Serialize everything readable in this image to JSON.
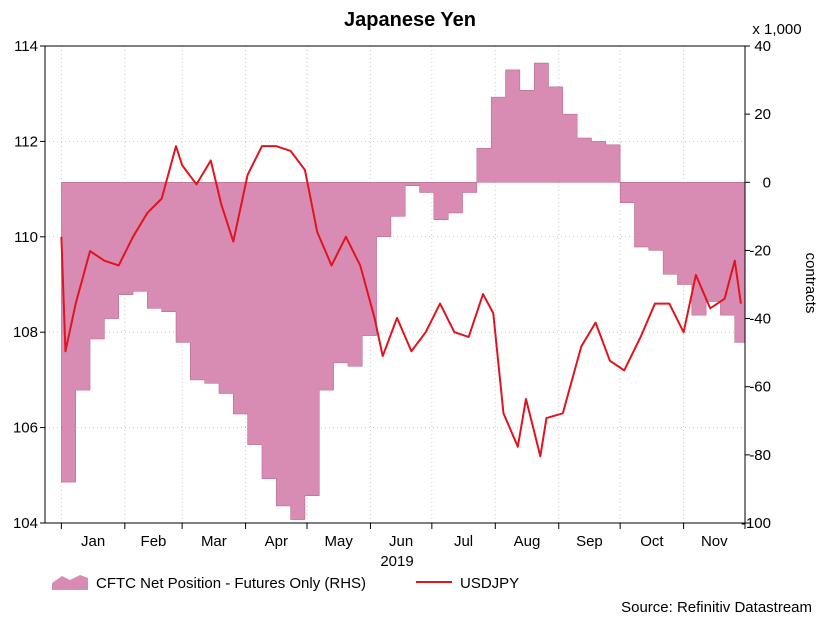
{
  "chart_data": {
    "type": "area",
    "title": "Japanese Yen",
    "x_year_label": "2019",
    "x_ticks": [
      "Jan",
      "Feb",
      "Mar",
      "Apr",
      "May",
      "Jun",
      "Jul",
      "Aug",
      "Sep",
      "Oct",
      "Nov"
    ],
    "y_left": {
      "ylim": [
        104,
        114
      ],
      "ticks": [
        "104",
        "106",
        "108",
        "110",
        "112",
        "114"
      ]
    },
    "y_right": {
      "ylim": [
        -100,
        40
      ],
      "ticks": [
        "-100",
        "-80",
        "-60",
        "-40",
        "-20",
        "0",
        "20",
        "40"
      ],
      "label": "contracts",
      "multiplier_label": "x 1,000"
    },
    "grid": true,
    "legend_position": "bottom",
    "source": "Source: Refinitiv Datastream",
    "series": [
      {
        "name": "CFTC Net Position - Futures Only (RHS)",
        "type": "area",
        "axis": "right",
        "color": "#D98CB3",
        "x": [
          "2019-01-01",
          "2019-01-08",
          "2019-01-15",
          "2019-01-22",
          "2019-01-29",
          "2019-02-05",
          "2019-02-12",
          "2019-02-19",
          "2019-02-26",
          "2019-03-05",
          "2019-03-12",
          "2019-03-19",
          "2019-03-26",
          "2019-04-02",
          "2019-04-09",
          "2019-04-16",
          "2019-04-23",
          "2019-04-30",
          "2019-05-07",
          "2019-05-14",
          "2019-05-21",
          "2019-05-28",
          "2019-06-04",
          "2019-06-11",
          "2019-06-18",
          "2019-06-25",
          "2019-07-02",
          "2019-07-09",
          "2019-07-16",
          "2019-07-23",
          "2019-07-30",
          "2019-08-06",
          "2019-08-13",
          "2019-08-20",
          "2019-08-27",
          "2019-09-03",
          "2019-09-10",
          "2019-09-17",
          "2019-09-24",
          "2019-10-01",
          "2019-10-08",
          "2019-10-15",
          "2019-10-22",
          "2019-10-29",
          "2019-11-05",
          "2019-11-12",
          "2019-11-19",
          "2019-11-26"
        ],
        "values": [
          -88,
          -61,
          -46,
          -40,
          -33,
          -32,
          -37,
          -38,
          -47,
          -58,
          -59,
          -62,
          -68,
          -77,
          -87,
          -95,
          -99,
          -92,
          -61,
          -53,
          -54,
          -45,
          -16,
          -10,
          -1,
          -3,
          -11,
          -9,
          -3,
          10,
          25,
          33,
          27,
          35,
          28,
          20,
          13,
          12,
          11,
          -6,
          -19,
          -20,
          -27,
          -30,
          -39,
          -35,
          -39,
          -47
        ]
      },
      {
        "name": "USDJPY",
        "type": "line",
        "axis": "left",
        "color": "#E0141E",
        "x": [
          "2019-01-01",
          "2019-01-03",
          "2019-01-08",
          "2019-01-15",
          "2019-01-22",
          "2019-01-29",
          "2019-02-05",
          "2019-02-12",
          "2019-02-19",
          "2019-02-26",
          "2019-03-01",
          "2019-03-08",
          "2019-03-15",
          "2019-03-20",
          "2019-03-26",
          "2019-04-02",
          "2019-04-09",
          "2019-04-16",
          "2019-04-23",
          "2019-04-30",
          "2019-05-06",
          "2019-05-13",
          "2019-05-20",
          "2019-05-27",
          "2019-06-03",
          "2019-06-07",
          "2019-06-14",
          "2019-06-21",
          "2019-06-28",
          "2019-07-05",
          "2019-07-12",
          "2019-07-19",
          "2019-07-26",
          "2019-07-31",
          "2019-08-05",
          "2019-08-12",
          "2019-08-16",
          "2019-08-23",
          "2019-08-26",
          "2019-09-03",
          "2019-09-12",
          "2019-09-19",
          "2019-09-26",
          "2019-10-03",
          "2019-10-11",
          "2019-10-18",
          "2019-10-25",
          "2019-11-01",
          "2019-11-07",
          "2019-11-14",
          "2019-11-21",
          "2019-11-26",
          "2019-11-29"
        ],
        "values": [
          110.0,
          107.6,
          108.6,
          109.7,
          109.5,
          109.4,
          110.0,
          110.5,
          110.8,
          111.9,
          111.5,
          111.1,
          111.6,
          110.7,
          109.9,
          111.3,
          111.9,
          111.9,
          111.8,
          111.4,
          110.1,
          109.4,
          110.0,
          109.4,
          108.3,
          107.5,
          108.3,
          107.6,
          108.0,
          108.6,
          108.0,
          107.9,
          108.8,
          108.4,
          106.3,
          105.6,
          106.6,
          105.4,
          106.2,
          106.3,
          107.7,
          108.2,
          107.4,
          107.2,
          107.9,
          108.6,
          108.6,
          108.0,
          109.2,
          108.5,
          108.7,
          109.5,
          108.6
        ]
      }
    ]
  }
}
